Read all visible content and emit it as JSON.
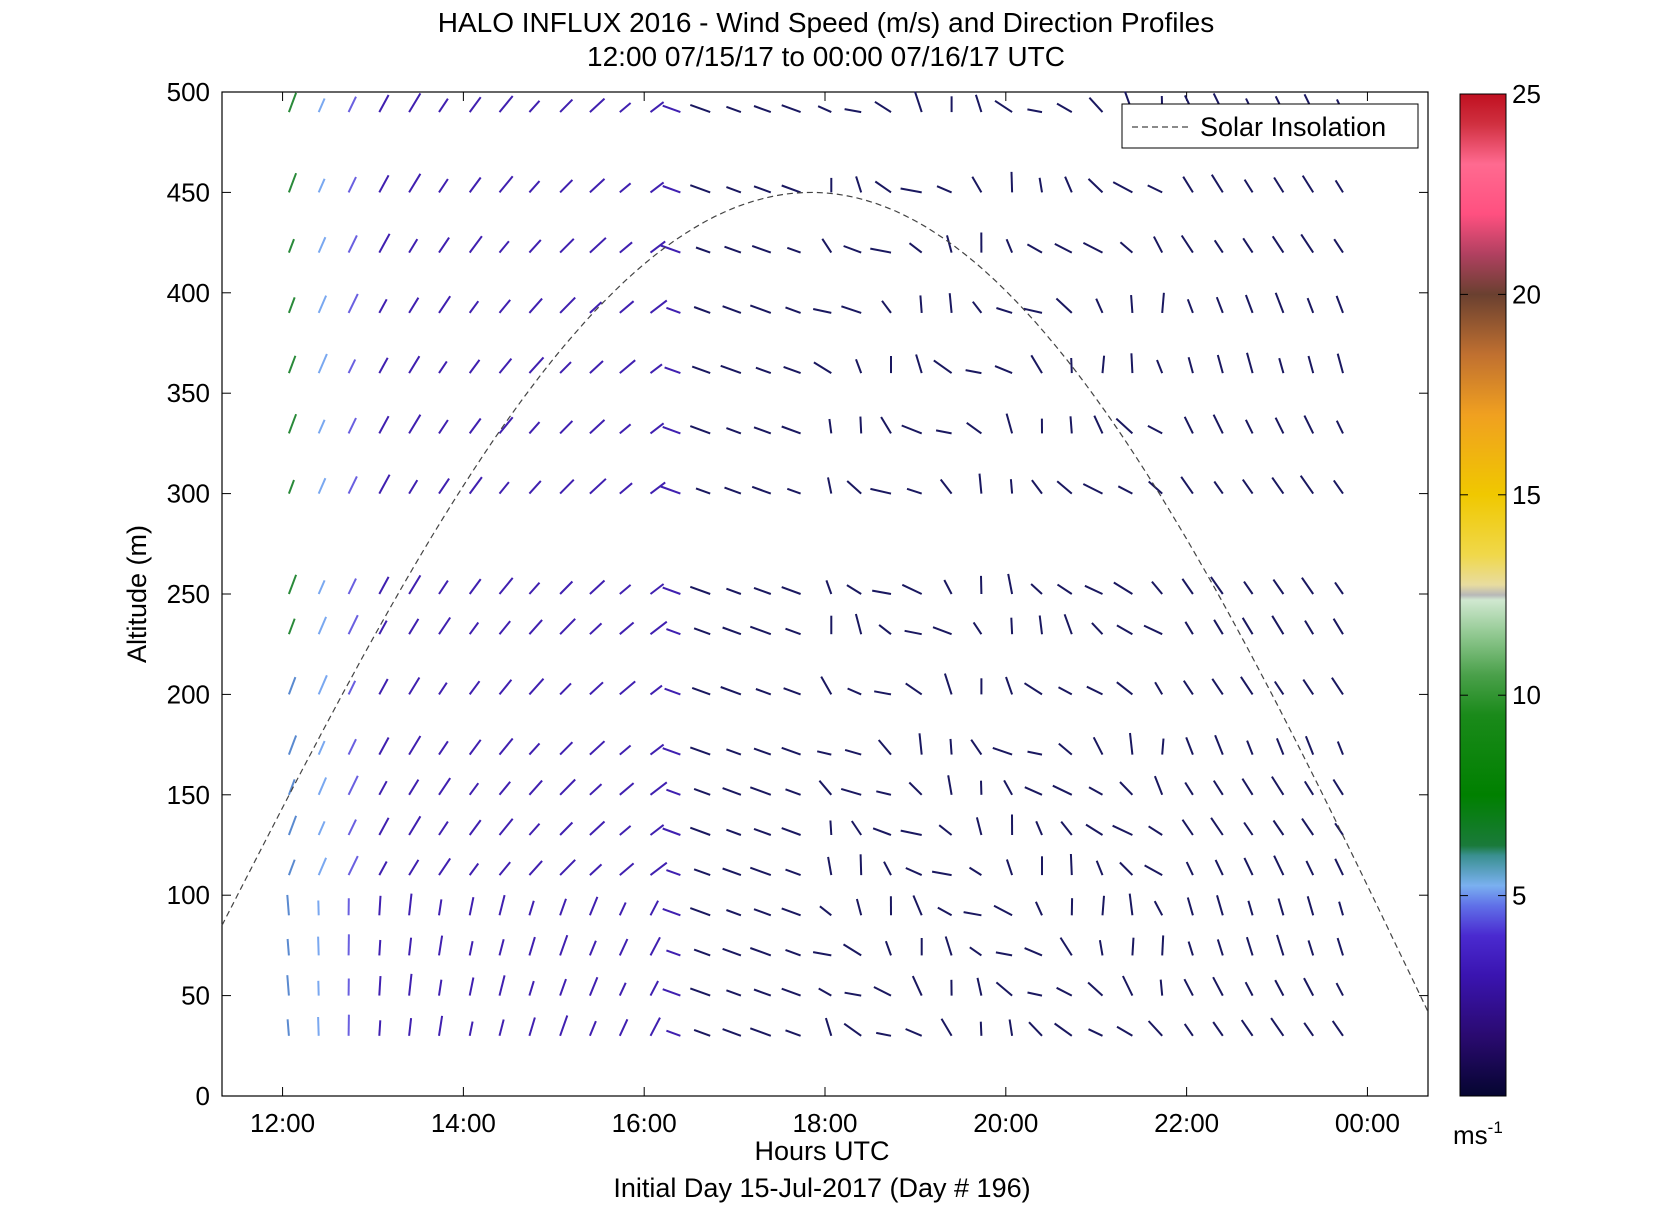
{
  "chart_data": {
    "type": "wind_barb_profile",
    "title": "HALO INFLUX 2016 - Wind Speed (m/s) and Direction Profiles",
    "subtitle": "12:00 07/15/17 to 00:00 07/16/17  UTC",
    "xlabel": "Hours UTC",
    "footer": "Initial Day 15-Jul-2017 (Day # 196)",
    "ylabel": "Altitude (m)",
    "xlim": [
      11.33,
      24.67
    ],
    "ylim": [
      0,
      500
    ],
    "x_ticks": [
      {
        "value": 12,
        "label": "12:00"
      },
      {
        "value": 14,
        "label": "14:00"
      },
      {
        "value": 16,
        "label": "16:00"
      },
      {
        "value": 18,
        "label": "18:00"
      },
      {
        "value": 20,
        "label": "20:00"
      },
      {
        "value": 22,
        "label": "22:00"
      },
      {
        "value": 24,
        "label": "00:00"
      }
    ],
    "y_ticks": [
      0,
      50,
      100,
      150,
      200,
      250,
      300,
      350,
      400,
      450,
      500
    ],
    "legend": {
      "entries": [
        "Solar Insolation"
      ],
      "placement": "top-right",
      "line_style": "dashed"
    },
    "solar_insolation": {
      "start_hour": 11.33,
      "peak_hour": 17.85,
      "end_hour": 24.67,
      "start_alt": 85,
      "peak_alt": 450,
      "end_alt": 42
    },
    "colorbar": {
      "min": 0,
      "max": 25,
      "ticks": [
        5,
        10,
        15,
        20,
        25
      ],
      "unit_label": "ms",
      "unit_exponent": "-1"
    },
    "wind_barbs": {
      "times_hours": [
        12.07,
        12.4,
        12.73,
        13.07,
        13.4,
        13.73,
        14.07,
        14.4,
        14.73,
        15.07,
        15.4,
        15.73,
        16.07,
        16.4,
        16.73,
        17.07,
        17.4,
        17.73,
        18.07,
        18.4,
        18.73,
        19.07,
        19.4,
        19.73,
        20.07,
        20.4,
        20.73,
        21.07,
        21.4,
        21.73,
        22.07,
        22.4,
        22.73,
        23.07,
        23.4,
        23.73
      ],
      "altitudes_m": [
        30,
        50,
        70,
        90,
        110,
        130,
        150,
        170,
        200,
        230,
        250,
        300,
        330,
        360,
        390,
        420,
        450,
        490
      ],
      "note": "Arrays of barbs per altitude level; speeds in m/s, directions in degrees"
    }
  }
}
